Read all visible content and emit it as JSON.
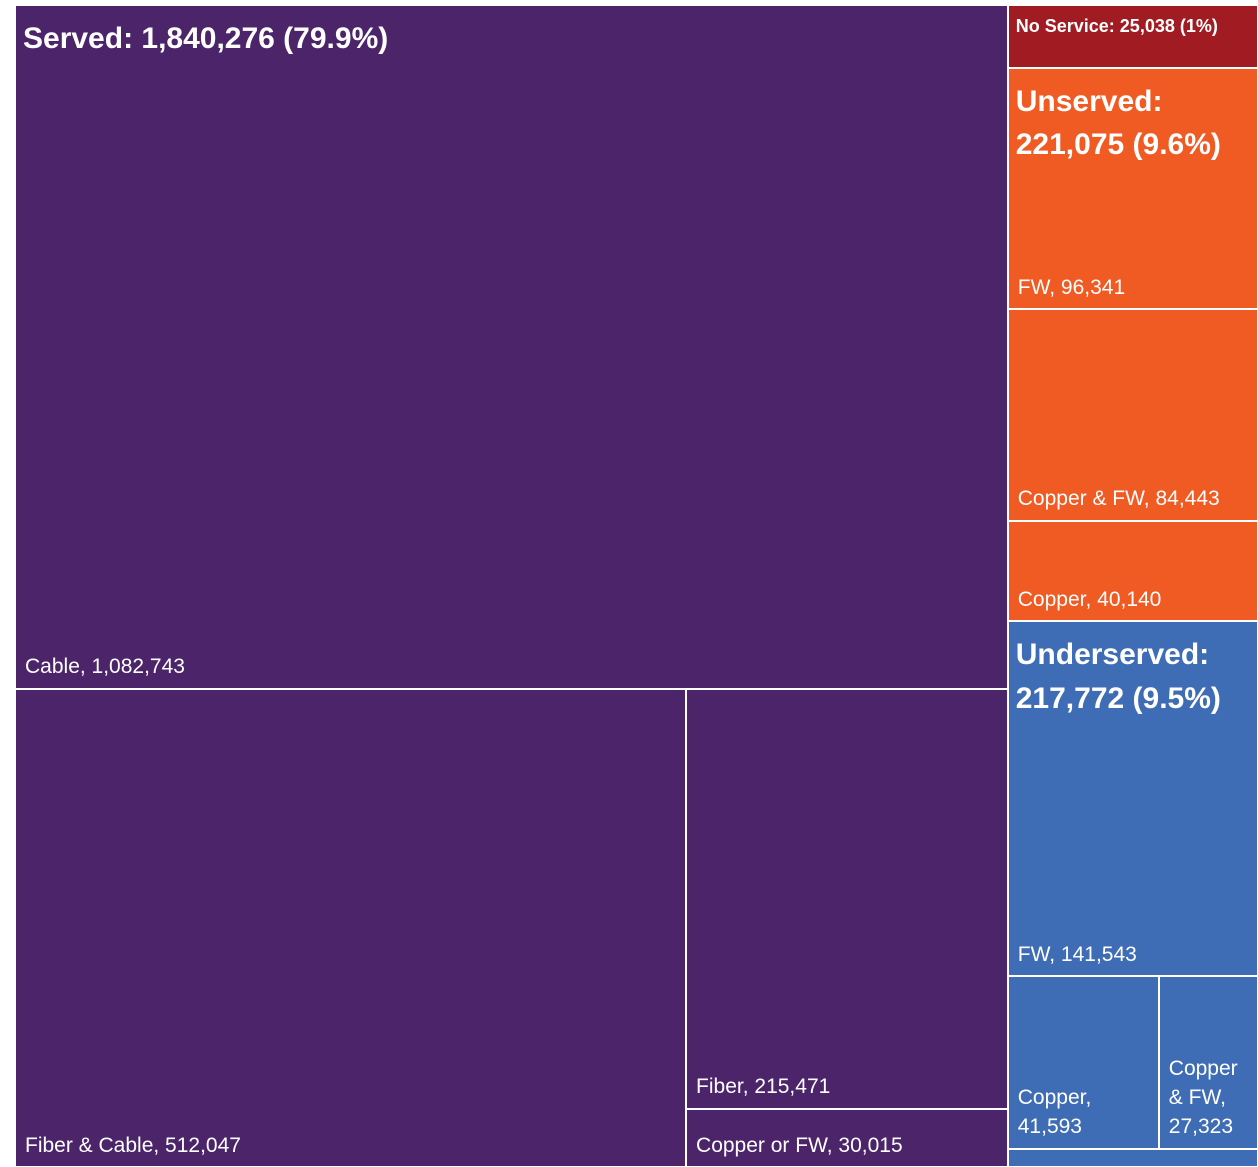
{
  "chart_data": {
    "type": "treemap",
    "groups": [
      {
        "label": "Served: 1,840,276 (79.9%)",
        "value": 1840276,
        "color": "#4b2469",
        "children": [
          {
            "label": "Cable, 1,082,743",
            "value": 1082743
          },
          {
            "label": "Fiber & Cable, 512,047",
            "value": 512047
          },
          {
            "label": "Fiber, 215,471",
            "value": 215471
          },
          {
            "label": "Copper or FW, 30,015",
            "value": 30015
          }
        ]
      },
      {
        "label": "No Service: 25,038 (1%)",
        "value": 25038,
        "color": "#a11c22",
        "children": []
      },
      {
        "label": "Unserved: 221,075 (9.6%)",
        "value": 221075,
        "color": "#f05a23",
        "children": [
          {
            "label": "FW, 96,341",
            "value": 96341
          },
          {
            "label": "Copper & FW, 84,443",
            "value": 84443
          },
          {
            "label": "Copper, 40,140",
            "value": 40140
          }
        ]
      },
      {
        "label": "Underserved: 217,772 (9.5%)",
        "value": 217772,
        "color": "#3f6db5",
        "children": [
          {
            "label": "FW, 141,543",
            "value": 141543
          },
          {
            "label": "Copper, 41,593",
            "value": 41593
          },
          {
            "label": "Copper & FW, 27,323",
            "value": 27323
          },
          {
            "label": null,
            "value": 7313
          }
        ]
      }
    ]
  }
}
